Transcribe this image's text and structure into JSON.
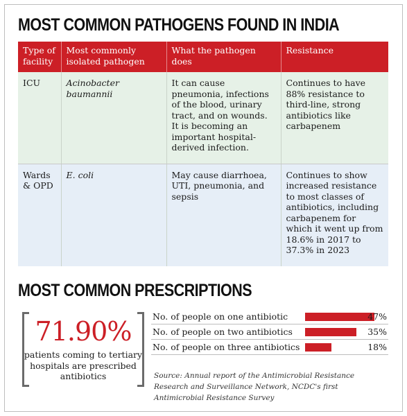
{
  "heading_pathogens": "MOST COMMON PATHOGENS FOUND IN INDIA",
  "table": {
    "headers": [
      "Type of facility",
      "Most commonly isolated pathogen",
      "What the pathogen does",
      "Resistance"
    ],
    "rows": [
      {
        "facility": "ICU",
        "pathogen": "Acinobacter baumannii",
        "does": "It can cause pneumonia, infections of the blood, urinary tract, and on wounds. It is becoming an important hospital-derived infection.",
        "resistance": "Continues to have 88% resistance to third-line, strong antibiotics like carbapenem"
      },
      {
        "facility": "Wards & OPD",
        "pathogen": "E. coli",
        "does": "May cause diarrhoea, UTI, pneumonia, and sepsis",
        "resistance": "Continues to show increased resistance to most classes of antibiotics, including carbapenem for which it went up from 18.6% in 2017 to 37.3% in 2023"
      }
    ]
  },
  "heading_prescriptions": "MOST COMMON PRESCRIPTIONS",
  "highlight": {
    "value": "71.90%",
    "caption": "patients coming to tertiary hospitals are prescribed antibiotics"
  },
  "bars": [
    {
      "label": "No. of people on one antibiotic",
      "value": 47,
      "display": "47%"
    },
    {
      "label": "No. of people on two antibiotics",
      "value": 35,
      "display": "35%"
    },
    {
      "label": "No. of people on three antibiotics",
      "value": 18,
      "display": "18%"
    }
  ],
  "source": "Source: Annual report of the Antimicrobial Resistance Research and Surveillance Network, NCDC's first Antimicrobial Resistance Survey",
  "colors": {
    "accent": "#cc1f26",
    "icu_row": "#e6f1e7",
    "wards_row": "#e6eef7"
  }
}
